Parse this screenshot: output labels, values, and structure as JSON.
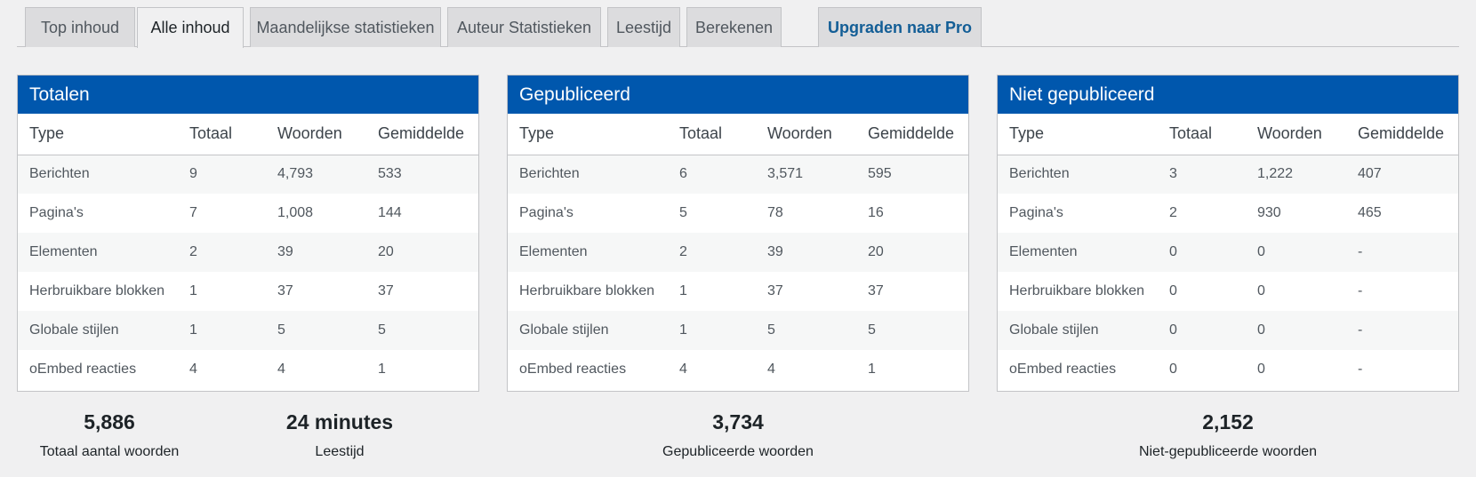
{
  "tabs": [
    {
      "label": "Top inhoud"
    },
    {
      "label": "Alle inhoud"
    },
    {
      "label": "Maandelijkse statistieken"
    },
    {
      "label": "Auteur Statistieken"
    },
    {
      "label": "Leestijd"
    },
    {
      "label": "Berekenen"
    },
    {
      "label": "Upgraden naar Pro"
    }
  ],
  "active_tab": "Alle inhoud",
  "colors": {
    "header_blue": "#0057ad",
    "pro_link": "#135e96"
  },
  "columns": [
    "Type",
    "Totaal",
    "Woorden",
    "Gemiddelde"
  ],
  "cards": [
    {
      "title": "Totalen",
      "rows": [
        [
          "Berichten",
          "9",
          "4,793",
          "533"
        ],
        [
          "Pagina's",
          "7",
          "1,008",
          "144"
        ],
        [
          "Elementen",
          "2",
          "39",
          "20"
        ],
        [
          "Herbruikbare blokken",
          "1",
          "37",
          "37"
        ],
        [
          "Globale stijlen",
          "1",
          "5",
          "5"
        ],
        [
          "oEmbed reacties",
          "4",
          "4",
          "1"
        ]
      ]
    },
    {
      "title": "Gepubliceerd",
      "rows": [
        [
          "Berichten",
          "6",
          "3,571",
          "595"
        ],
        [
          "Pagina's",
          "5",
          "78",
          "16"
        ],
        [
          "Elementen",
          "2",
          "39",
          "20"
        ],
        [
          "Herbruikbare blokken",
          "1",
          "37",
          "37"
        ],
        [
          "Globale stijlen",
          "1",
          "5",
          "5"
        ],
        [
          "oEmbed reacties",
          "4",
          "4",
          "1"
        ]
      ]
    },
    {
      "title": "Niet gepubliceerd",
      "rows": [
        [
          "Berichten",
          "3",
          "1,222",
          "407"
        ],
        [
          "Pagina's",
          "2",
          "930",
          "465"
        ],
        [
          "Elementen",
          "0",
          "0",
          "-"
        ],
        [
          "Herbruikbare blokken",
          "0",
          "0",
          "-"
        ],
        [
          "Globale stijlen",
          "0",
          "0",
          "-"
        ],
        [
          "oEmbed reacties",
          "0",
          "0",
          "-"
        ]
      ]
    }
  ],
  "stats": [
    {
      "value": "5,886",
      "label": "Totaal aantal woorden"
    },
    {
      "value": "24 minutes",
      "label": "Leestijd"
    },
    {
      "value": "3,734",
      "label": "Gepubliceerde woorden"
    },
    {
      "value": "2,152",
      "label": "Niet-gepubliceerde woorden"
    }
  ]
}
